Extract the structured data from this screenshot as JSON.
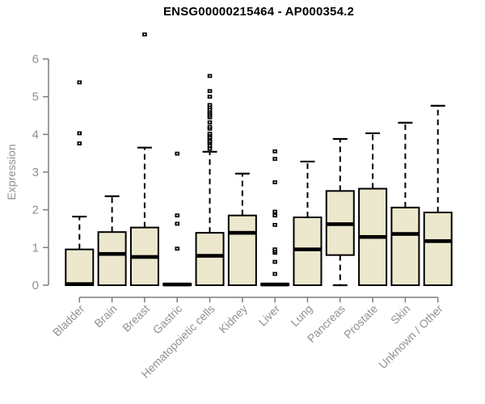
{
  "title": "ENSG00000215464 - AP000354.2",
  "chart_data": {
    "type": "boxplot",
    "title": "ENSG00000215464 - AP000354.2",
    "xlabel": "",
    "ylabel": "Expression",
    "ylim": [
      0,
      6
    ],
    "yticks": [
      0,
      1,
      2,
      3,
      4,
      5,
      6
    ],
    "grid": false,
    "legend": "none",
    "categories": [
      "Bladder",
      "Brain",
      "Breast",
      "Gastric",
      "Hematopoietic cells",
      "Kidney",
      "Liver",
      "Lung",
      "Pancreas",
      "Prostate",
      "Skin",
      "Unknown / Other"
    ],
    "series": [
      {
        "name": "Bladder",
        "whisker_low": 0,
        "q1": 0,
        "median": 0.03,
        "q3": 0.95,
        "whisker_high": 1.82,
        "outliers": [
          3.76,
          4.03,
          5.38
        ]
      },
      {
        "name": "Brain",
        "whisker_low": 0,
        "q1": 0,
        "median": 0.83,
        "q3": 1.41,
        "whisker_high": 2.36,
        "outliers": []
      },
      {
        "name": "Breast",
        "whisker_low": 0,
        "q1": 0,
        "median": 0.75,
        "q3": 1.53,
        "whisker_high": 3.65,
        "outliers": [
          6.65
        ]
      },
      {
        "name": "Gastric",
        "whisker_low": 0,
        "q1": 0,
        "median": 0.02,
        "q3": 0.04,
        "whisker_high": 0.04,
        "outliers": [
          0.97,
          1.63,
          1.85,
          3.49
        ]
      },
      {
        "name": "Hematopoietic cells",
        "whisker_low": 0,
        "q1": 0,
        "median": 0.78,
        "q3": 1.39,
        "whisker_high": 3.54,
        "outliers": [
          3.62,
          3.7,
          3.78,
          3.82,
          3.88,
          3.92,
          3.98,
          4.02,
          4.15,
          4.2,
          4.32,
          4.45,
          4.5,
          4.55,
          4.6,
          4.65,
          4.72,
          4.78,
          5.0,
          5.15,
          5.55
        ]
      },
      {
        "name": "Kidney",
        "whisker_low": 0,
        "q1": 0,
        "median": 1.39,
        "q3": 1.85,
        "whisker_high": 2.96,
        "outliers": []
      },
      {
        "name": "Liver",
        "whisker_low": 0,
        "q1": 0,
        "median": 0.02,
        "q3": 0.04,
        "whisker_high": 0.04,
        "outliers": [
          0.3,
          0.62,
          0.86,
          0.9,
          0.95,
          1.6,
          1.85,
          1.95,
          2.73,
          3.35,
          3.55
        ]
      },
      {
        "name": "Lung",
        "whisker_low": 0,
        "q1": 0,
        "median": 0.95,
        "q3": 1.8,
        "whisker_high": 3.28,
        "outliers": []
      },
      {
        "name": "Pancreas",
        "whisker_low": 0,
        "q1": 0.8,
        "median": 1.62,
        "q3": 2.5,
        "whisker_high": 3.88,
        "outliers": []
      },
      {
        "name": "Prostate",
        "whisker_low": 0,
        "q1": 0,
        "median": 1.28,
        "q3": 2.56,
        "whisker_high": 4.03,
        "outliers": []
      },
      {
        "name": "Skin",
        "whisker_low": 0,
        "q1": 0,
        "median": 1.36,
        "q3": 2.06,
        "whisker_high": 4.31,
        "outliers": []
      },
      {
        "name": "Unknown / Other",
        "whisker_low": 0,
        "q1": 0,
        "median": 1.17,
        "q3": 1.93,
        "whisker_high": 4.76,
        "outliers": []
      }
    ],
    "colors": {
      "box_fill": "#ece8cd",
      "box_border": "#000000",
      "median": "#000000",
      "whisker": "#000000",
      "outlier": "#000000",
      "axis_line": "#7f7f7f",
      "axis_text": "#8f9193",
      "title_text": "#000000",
      "background": "#ffffff"
    }
  }
}
